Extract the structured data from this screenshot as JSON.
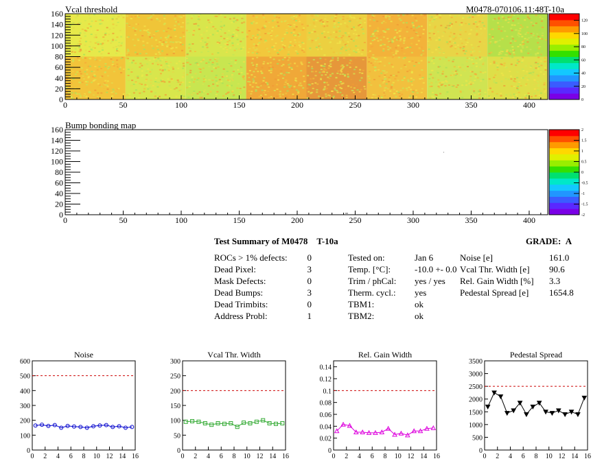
{
  "module_id": "M0478-070106.11:48T-10a",
  "maps": [
    {
      "title": "Vcal threshold",
      "x_ticks": [
        0,
        50,
        100,
        150,
        200,
        250,
        300,
        350,
        400
      ],
      "y_ticks": [
        0,
        20,
        40,
        60,
        80,
        100,
        120,
        140,
        160
      ],
      "xlim": [
        0,
        416
      ],
      "ylim": [
        0,
        160
      ],
      "colorbar_ticks": [
        "0",
        "20",
        "40",
        "60",
        "80",
        "100",
        "120"
      ],
      "colorbar_range": [
        0,
        130
      ]
    },
    {
      "title": "Bump bonding map",
      "x_ticks": [
        0,
        50,
        100,
        150,
        200,
        250,
        300,
        350,
        400
      ],
      "y_ticks": [
        0,
        20,
        40,
        60,
        80,
        100,
        120,
        140,
        160
      ],
      "xlim": [
        0,
        416
      ],
      "ylim": [
        0,
        160
      ],
      "colorbar_ticks": [
        "2",
        "1.5",
        "1",
        "0.5",
        "0",
        "-0.5",
        "-1",
        "-1.5",
        "-2"
      ],
      "colorbar_range": [
        -2,
        2
      ]
    }
  ],
  "summary": {
    "title": "Test Summary of M0478",
    "temp_tag": "T-10a",
    "grade_label": "GRADE:",
    "grade": "A",
    "col1": [
      {
        "label": "ROCs > 1% defects:",
        "value": "0"
      },
      {
        "label": "Dead Pixel:",
        "value": "3"
      },
      {
        "label": "Mask Defects:",
        "value": "0"
      },
      {
        "label": "Dead Bumps:",
        "value": "3"
      },
      {
        "label": "Dead Trimbits:",
        "value": "0"
      },
      {
        "label": "Address Probl:",
        "value": "1"
      }
    ],
    "col2": [
      {
        "label": "Tested on:",
        "value": "Jan 6"
      },
      {
        "label": "Temp. [°C]:",
        "value": "-10.0 +- 0.0"
      },
      {
        "label": "Trim / phCal:",
        "value": "yes / yes"
      },
      {
        "label": "Therm. cycl.:",
        "value": "yes"
      },
      {
        "label": "TBM1:",
        "value": "ok"
      },
      {
        "label": "TBM2:",
        "value": "ok"
      }
    ],
    "col3": [
      {
        "label": "Noise [e]",
        "value": "161.0"
      },
      {
        "label": "Vcal Thr. Width [e]",
        "value": "90.6"
      },
      {
        "label": "Rel. Gain Width [%]",
        "value": "3.3"
      },
      {
        "label": "Pedestal Spread [e]",
        "value": "1654.8"
      }
    ]
  },
  "chart_data": [
    {
      "type": "line",
      "title": "Noise",
      "x": [
        0.5,
        1.5,
        2.5,
        3.5,
        4.5,
        5.5,
        6.5,
        7.5,
        8.5,
        9.5,
        10.5,
        11.5,
        12.5,
        13.5,
        14.5,
        15.5
      ],
      "values": [
        165,
        170,
        162,
        168,
        150,
        162,
        158,
        155,
        150,
        160,
        165,
        168,
        155,
        160,
        150,
        155
      ],
      "threshold": 500,
      "xlim": [
        0,
        16
      ],
      "ylim": [
        0,
        600
      ],
      "y_ticks": [
        0,
        100,
        200,
        300,
        400,
        500,
        600
      ],
      "x_ticks": [
        0,
        2,
        4,
        6,
        8,
        10,
        12,
        14,
        16
      ],
      "color": "#0000cc",
      "marker": "circle"
    },
    {
      "type": "line",
      "title": "Vcal Thr. Width",
      "x": [
        0.5,
        1.5,
        2.5,
        3.5,
        4.5,
        5.5,
        6.5,
        7.5,
        8.5,
        9.5,
        10.5,
        11.5,
        12.5,
        13.5,
        14.5,
        15.5
      ],
      "values": [
        95,
        97,
        95,
        90,
        85,
        90,
        88,
        90,
        78,
        92,
        90,
        95,
        100,
        90,
        88,
        90
      ],
      "threshold": 200,
      "xlim": [
        0,
        16
      ],
      "ylim": [
        0,
        300
      ],
      "y_ticks": [
        0,
        50,
        100,
        150,
        200,
        250,
        300
      ],
      "x_ticks": [
        0,
        2,
        4,
        6,
        8,
        10,
        12,
        14,
        16
      ],
      "color": "#33aa33",
      "marker": "square"
    },
    {
      "type": "line",
      "title": "Rel. Gain Width",
      "x": [
        0.5,
        1.5,
        2.5,
        3.5,
        4.5,
        5.5,
        6.5,
        7.5,
        8.5,
        9.5,
        10.5,
        11.5,
        12.5,
        13.5,
        14.5,
        15.5
      ],
      "values": [
        0.032,
        0.043,
        0.041,
        0.03,
        0.03,
        0.029,
        0.029,
        0.03,
        0.036,
        0.026,
        0.028,
        0.025,
        0.032,
        0.032,
        0.036,
        0.037
      ],
      "threshold": 0.1,
      "xlim": [
        0,
        16
      ],
      "ylim": [
        0,
        0.15
      ],
      "y_ticks": [
        0,
        0.02,
        0.04,
        0.06,
        0.08,
        0.1,
        0.12,
        0.14
      ],
      "x_ticks": [
        0,
        2,
        4,
        6,
        8,
        10,
        12,
        14,
        16
      ],
      "color": "#dd00dd",
      "marker": "triangle"
    },
    {
      "type": "line",
      "title": "Pedestal Spread",
      "x": [
        0.5,
        1.5,
        2.5,
        3.5,
        4.5,
        5.5,
        6.5,
        7.5,
        8.5,
        9.5,
        10.5,
        11.5,
        12.5,
        13.5,
        14.5,
        15.5
      ],
      "values": [
        1700,
        2250,
        2100,
        1450,
        1550,
        1850,
        1400,
        1700,
        1850,
        1500,
        1450,
        1550,
        1400,
        1500,
        1400,
        2050
      ],
      "threshold": 2500,
      "xlim": [
        0,
        16
      ],
      "ylim": [
        0,
        3500
      ],
      "y_ticks": [
        0,
        500,
        1000,
        1500,
        2000,
        2500,
        3000,
        3500
      ],
      "x_ticks": [
        0,
        2,
        4,
        6,
        8,
        10,
        12,
        14,
        16
      ],
      "color": "#000000",
      "marker": "triangle-down"
    }
  ]
}
